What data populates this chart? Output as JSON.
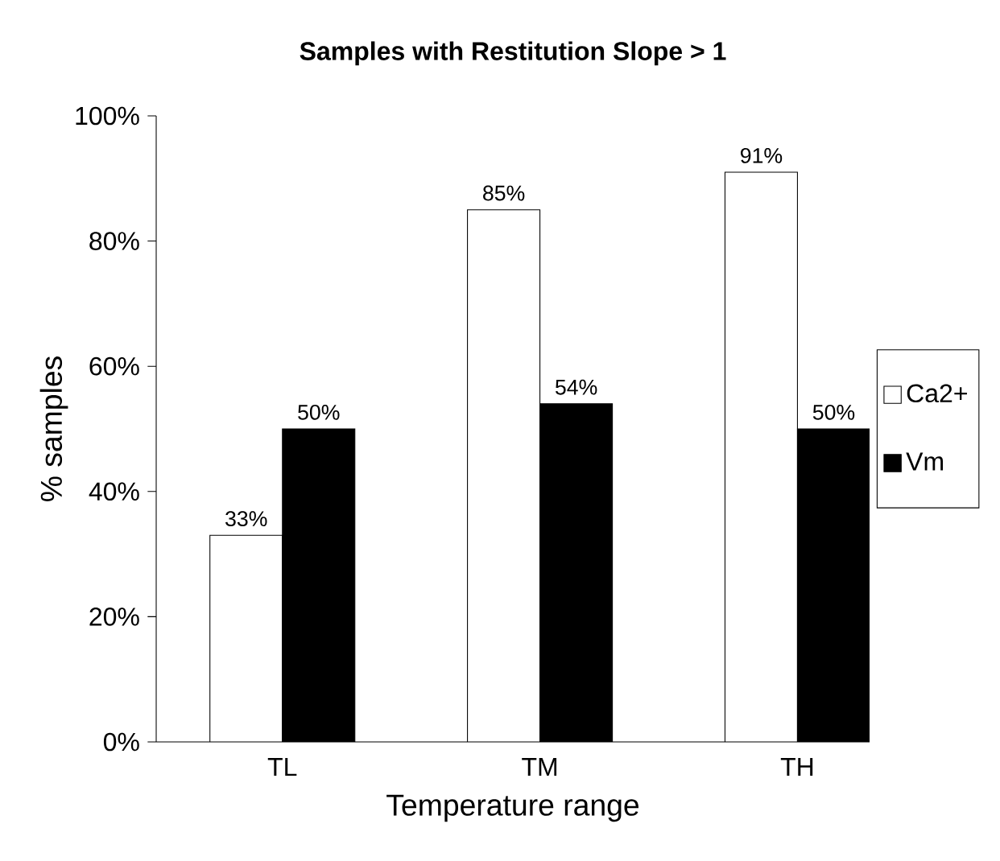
{
  "chart_data": {
    "type": "bar",
    "title": "Samples with Restitution Slope > 1",
    "xlabel": "Temperature range",
    "ylabel": "% samples",
    "categories": [
      "TL",
      "TM",
      "TH"
    ],
    "series": [
      {
        "name": "Ca2+",
        "color": "#ffffff",
        "values": [
          33,
          85,
          91
        ],
        "value_labels": [
          "33%",
          "85%",
          "91%"
        ]
      },
      {
        "name": "Vm",
        "color": "#000000",
        "values": [
          50,
          54,
          50
        ],
        "value_labels": [
          "50%",
          "54%",
          "50%"
        ]
      }
    ],
    "ylim": [
      0,
      100
    ],
    "yticks": [
      {
        "value": 0,
        "label": "0%"
      },
      {
        "value": 20,
        "label": "20%"
      },
      {
        "value": 40,
        "label": "40%"
      },
      {
        "value": 60,
        "label": "60%"
      },
      {
        "value": 80,
        "label": "80%"
      },
      {
        "value": 100,
        "label": "100%"
      }
    ],
    "grid": false,
    "legend": "right"
  }
}
